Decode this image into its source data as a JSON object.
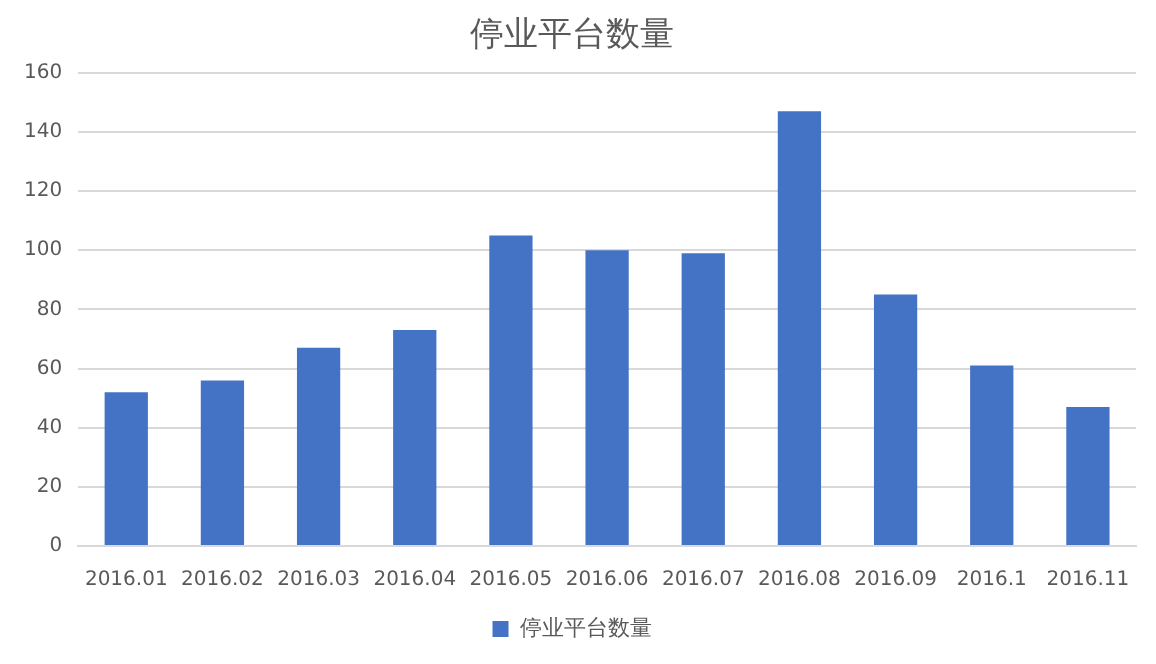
{
  "chart_data": {
    "type": "bar",
    "title": "停业平台数量",
    "categories": [
      "2016.01",
      "2016.02",
      "2016.03",
      "2016.04",
      "2016.05",
      "2016.06",
      "2016.07",
      "2016.08",
      "2016.09",
      "2016.1",
      "2016.11"
    ],
    "series": [
      {
        "name": "停业平台数量",
        "color": "#4472c4",
        "values": [
          52,
          56,
          67,
          73,
          105,
          100,
          99,
          147,
          85,
          61,
          47
        ]
      }
    ],
    "ylim": [
      0,
      160
    ],
    "yticks": [
      0,
      20,
      40,
      60,
      80,
      100,
      120,
      140,
      160
    ],
    "grid": "y",
    "legend": "bottom"
  }
}
